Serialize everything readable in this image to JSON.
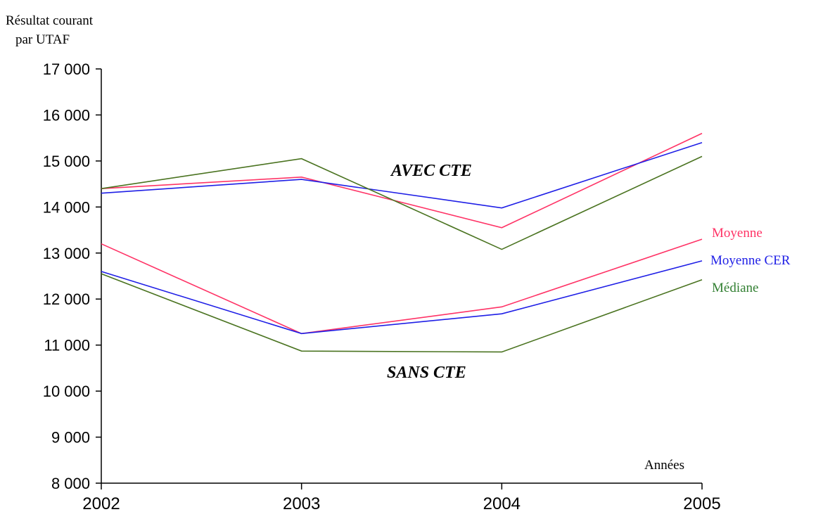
{
  "chart_data": {
    "type": "line",
    "ylabel": [
      "Résultat courant",
      "par UTAF"
    ],
    "xlabel": "Années",
    "x": [
      "2002",
      "2003",
      "2004",
      "2005"
    ],
    "ylim": [
      8000,
      17000
    ],
    "yticks": [
      {
        "value": 8000,
        "label": "8 000"
      },
      {
        "value": 9000,
        "label": "9 000"
      },
      {
        "value": 10000,
        "label": "10 000"
      },
      {
        "value": 11000,
        "label": "11 000"
      },
      {
        "value": 12000,
        "label": "12 000"
      },
      {
        "value": 13000,
        "label": "13 000"
      },
      {
        "value": 14000,
        "label": "14 000"
      },
      {
        "value": 15000,
        "label": "15 000"
      },
      {
        "value": 16000,
        "label": "16 000"
      },
      {
        "value": 17000,
        "label": "17 000"
      }
    ],
    "legend": [
      {
        "label": "Moyenne",
        "color": "#ff3366"
      },
      {
        "label": "Moyenne CER",
        "color": "#1f1fe6"
      },
      {
        "label": "Médiane",
        "color": "#338033"
      }
    ],
    "groups": [
      {
        "label": "AVEC CTE",
        "series": [
          {
            "key": "moyenne",
            "values": [
              14400,
              14650,
              13550,
              15600
            ],
            "color": "#ff3366"
          },
          {
            "key": "moyenne_cer",
            "values": [
              14300,
              14600,
              13980,
              15400
            ],
            "color": "#1f1fe6"
          },
          {
            "key": "mediane",
            "values": [
              14400,
              15050,
              13080,
              15100
            ],
            "color": "#4a7320"
          }
        ]
      },
      {
        "label": "SANS CTE",
        "series": [
          {
            "key": "moyenne",
            "values": [
              13200,
              11250,
              11830,
              13300
            ],
            "color": "#ff3366"
          },
          {
            "key": "moyenne_cer",
            "values": [
              12600,
              11250,
              11680,
              12830
            ],
            "color": "#1f1fe6"
          },
          {
            "key": "mediane",
            "values": [
              12550,
              10870,
              10850,
              12420
            ],
            "color": "#4a7320"
          }
        ]
      }
    ],
    "grid": false
  }
}
